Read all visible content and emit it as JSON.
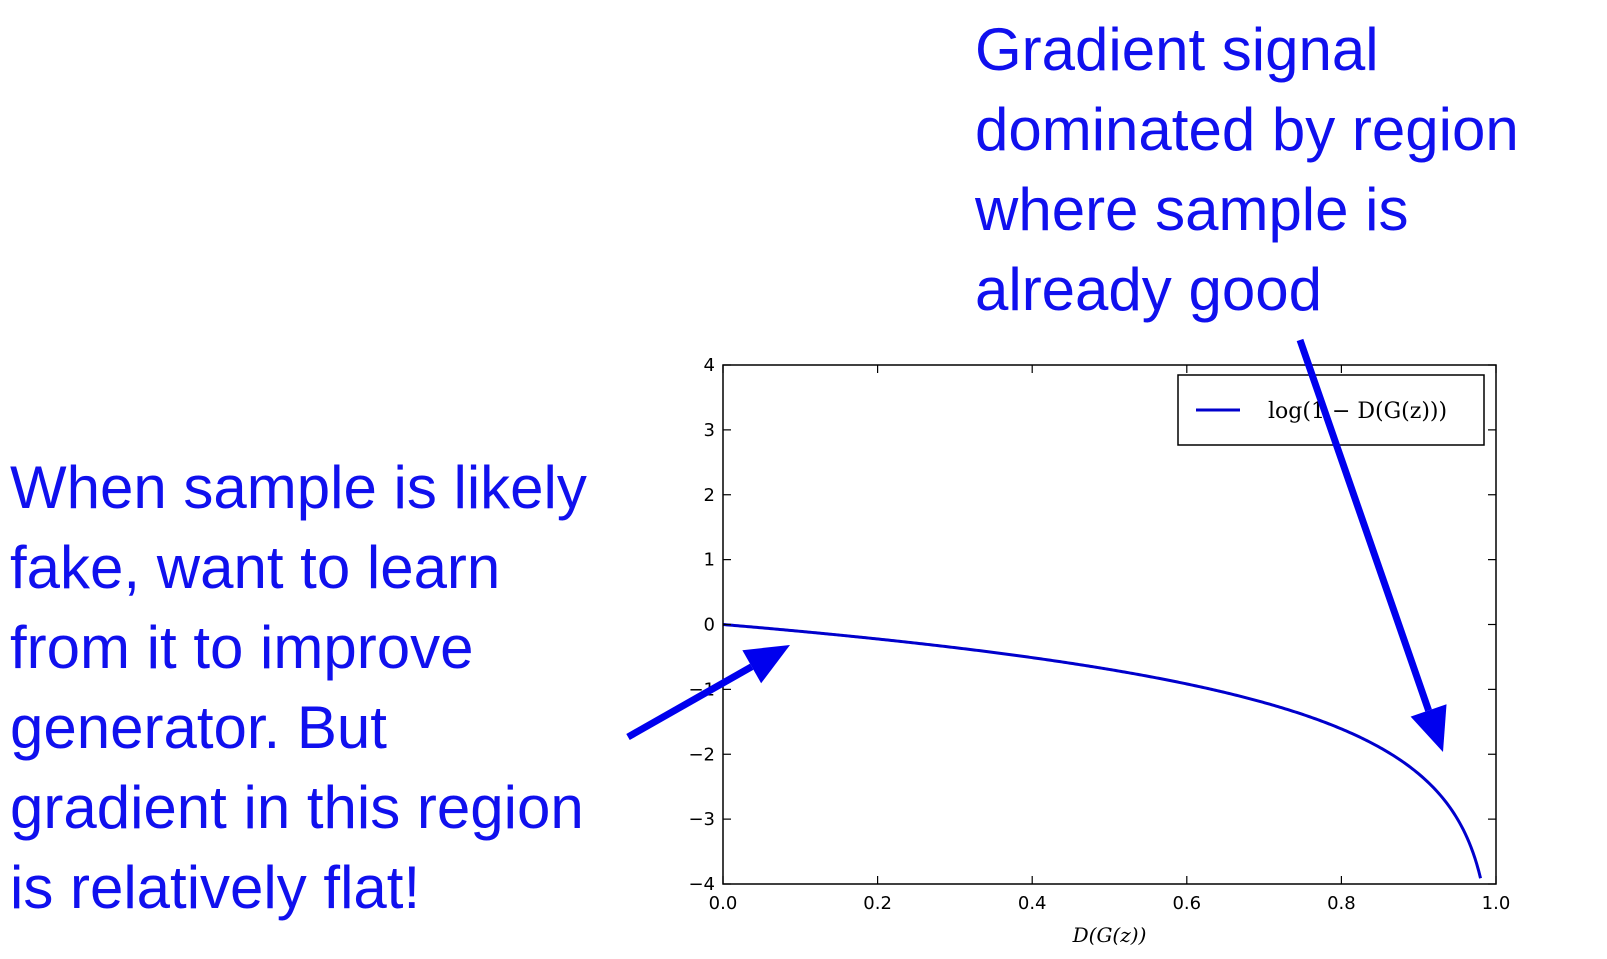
{
  "annotations": {
    "right": {
      "lines": [
        "Gradient signal",
        "dominated by region",
        "where sample is",
        "already good"
      ]
    },
    "left": {
      "lines": [
        "When sample is likely",
        "fake, want to learn",
        "from it to improve",
        "generator. But",
        "gradient in this region",
        "is relatively flat!"
      ]
    }
  },
  "colors": {
    "annotation": "#1010ee",
    "series": "#0000cc",
    "arrow": "#0000ee"
  },
  "chart_data": {
    "type": "line",
    "xlabel": "D(G(z))",
    "ylabel": "",
    "xlim": [
      0.0,
      1.0
    ],
    "ylim": [
      -4,
      4
    ],
    "x_ticks": [
      "0.0",
      "0.2",
      "0.4",
      "0.6",
      "0.8",
      "1.0"
    ],
    "y_ticks": [
      "4",
      "3",
      "2",
      "1",
      "0",
      "−1",
      "−2",
      "−3",
      "−4"
    ],
    "legend_position": "top-right",
    "series": [
      {
        "name": "log(1 − D(G(z)))",
        "function": "log(1 - x)",
        "x": [
          0.0,
          0.1,
          0.2,
          0.3,
          0.4,
          0.5,
          0.6,
          0.7,
          0.8,
          0.9,
          0.95,
          0.98
        ],
        "y": [
          0.0,
          -0.105,
          -0.223,
          -0.357,
          -0.511,
          -0.693,
          -0.916,
          -1.204,
          -1.609,
          -2.303,
          -2.996,
          -3.912
        ]
      }
    ],
    "grid": false
  }
}
